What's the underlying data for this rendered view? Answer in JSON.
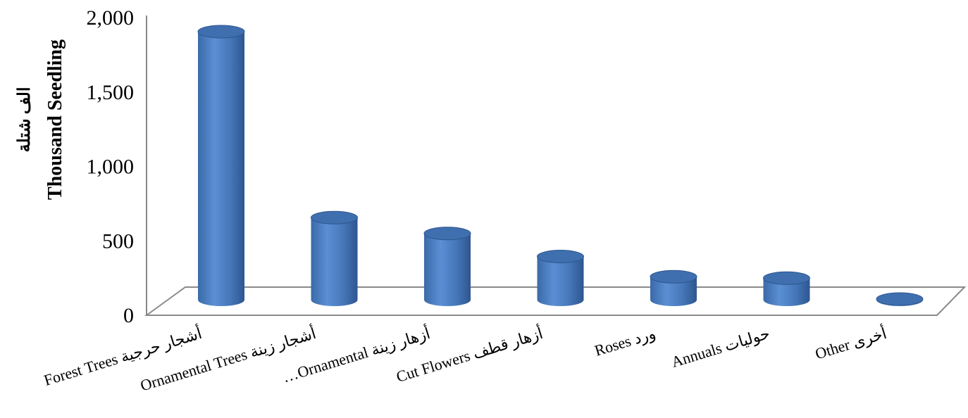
{
  "chart_data": {
    "type": "bar",
    "style": "3d-cylinder",
    "categories": [
      "Forest Trees أشجار حرجية",
      "Ornamental Trees أشجار زينة",
      "…Ornamental  أزهار زينة",
      "Cut Flowers أزهار قطف",
      "Roses ورد",
      "Annuals حوليات",
      "Other أخرى"
    ],
    "values": [
      1860,
      570,
      460,
      300,
      160,
      150,
      5
    ],
    "ylabel": "Thousand Seedling",
    "ylabel_ar": "الف شتلة",
    "ylim": [
      0,
      2000
    ],
    "yticks": [
      "0",
      "500",
      "1,000",
      "1,500",
      "2,000"
    ],
    "grid": false,
    "bar_color": "#4f81bd"
  }
}
